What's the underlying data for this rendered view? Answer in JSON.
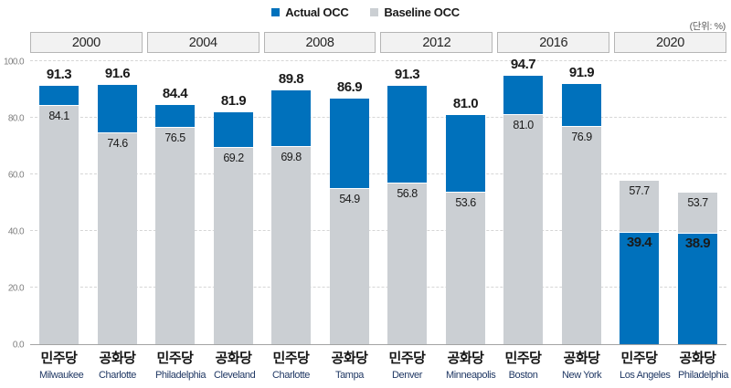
{
  "legend": {
    "actual": "Actual OCC",
    "baseline": "Baseline OCC"
  },
  "unit_label": "(단위: %)",
  "colors": {
    "actual": "#0071bc",
    "baseline": "#cbcfd3"
  },
  "y_axis": {
    "ticks": [
      "100.0",
      "80.0",
      "60.0",
      "40.0",
      "20.0",
      "0.0"
    ],
    "max": 100
  },
  "chart_data": {
    "type": "bar",
    "title": "",
    "unit": "%",
    "series": [
      {
        "name": "Actual OCC",
        "color": "#0071bc"
      },
      {
        "name": "Baseline OCC",
        "color": "#cbcfd3"
      }
    ],
    "ylim": [
      0,
      100
    ],
    "grid": true,
    "legend_position": "top",
    "groups": [
      {
        "year": "2000",
        "bars": [
          {
            "party": "민주당",
            "city": "Milwaukee",
            "actual": 91.3,
            "baseline": 84.1
          },
          {
            "party": "공화당",
            "city": "Charlotte",
            "actual": 91.6,
            "baseline": 74.6
          }
        ]
      },
      {
        "year": "2004",
        "bars": [
          {
            "party": "민주당",
            "city": "Philadelphia",
            "actual": 84.4,
            "baseline": 76.5
          },
          {
            "party": "공화당",
            "city": "Cleveland",
            "actual": 81.9,
            "baseline": 69.2
          }
        ]
      },
      {
        "year": "2008",
        "bars": [
          {
            "party": "민주당",
            "city": "Charlotte",
            "actual": 89.8,
            "baseline": 69.8
          },
          {
            "party": "공화당",
            "city": "Tampa",
            "actual": 86.9,
            "baseline": 54.9
          }
        ]
      },
      {
        "year": "2012",
        "bars": [
          {
            "party": "민주당",
            "city": "Denver",
            "actual": 91.3,
            "baseline": 56.8
          },
          {
            "party": "공화당",
            "city": "Minneapolis",
            "actual": 81.0,
            "baseline": 53.6
          }
        ]
      },
      {
        "year": "2016",
        "bars": [
          {
            "party": "민주당",
            "city": "Boston",
            "actual": 94.7,
            "baseline": 81.0
          },
          {
            "party": "공화당",
            "city": "New York",
            "actual": 91.9,
            "baseline": 76.9
          }
        ]
      },
      {
        "year": "2020",
        "bars": [
          {
            "party": "민주당",
            "city": "Los Angeles",
            "actual": 39.4,
            "baseline": 57.7
          },
          {
            "party": "공화당",
            "city": "Philadelphia",
            "actual": 38.9,
            "baseline": 53.7
          }
        ]
      }
    ]
  }
}
